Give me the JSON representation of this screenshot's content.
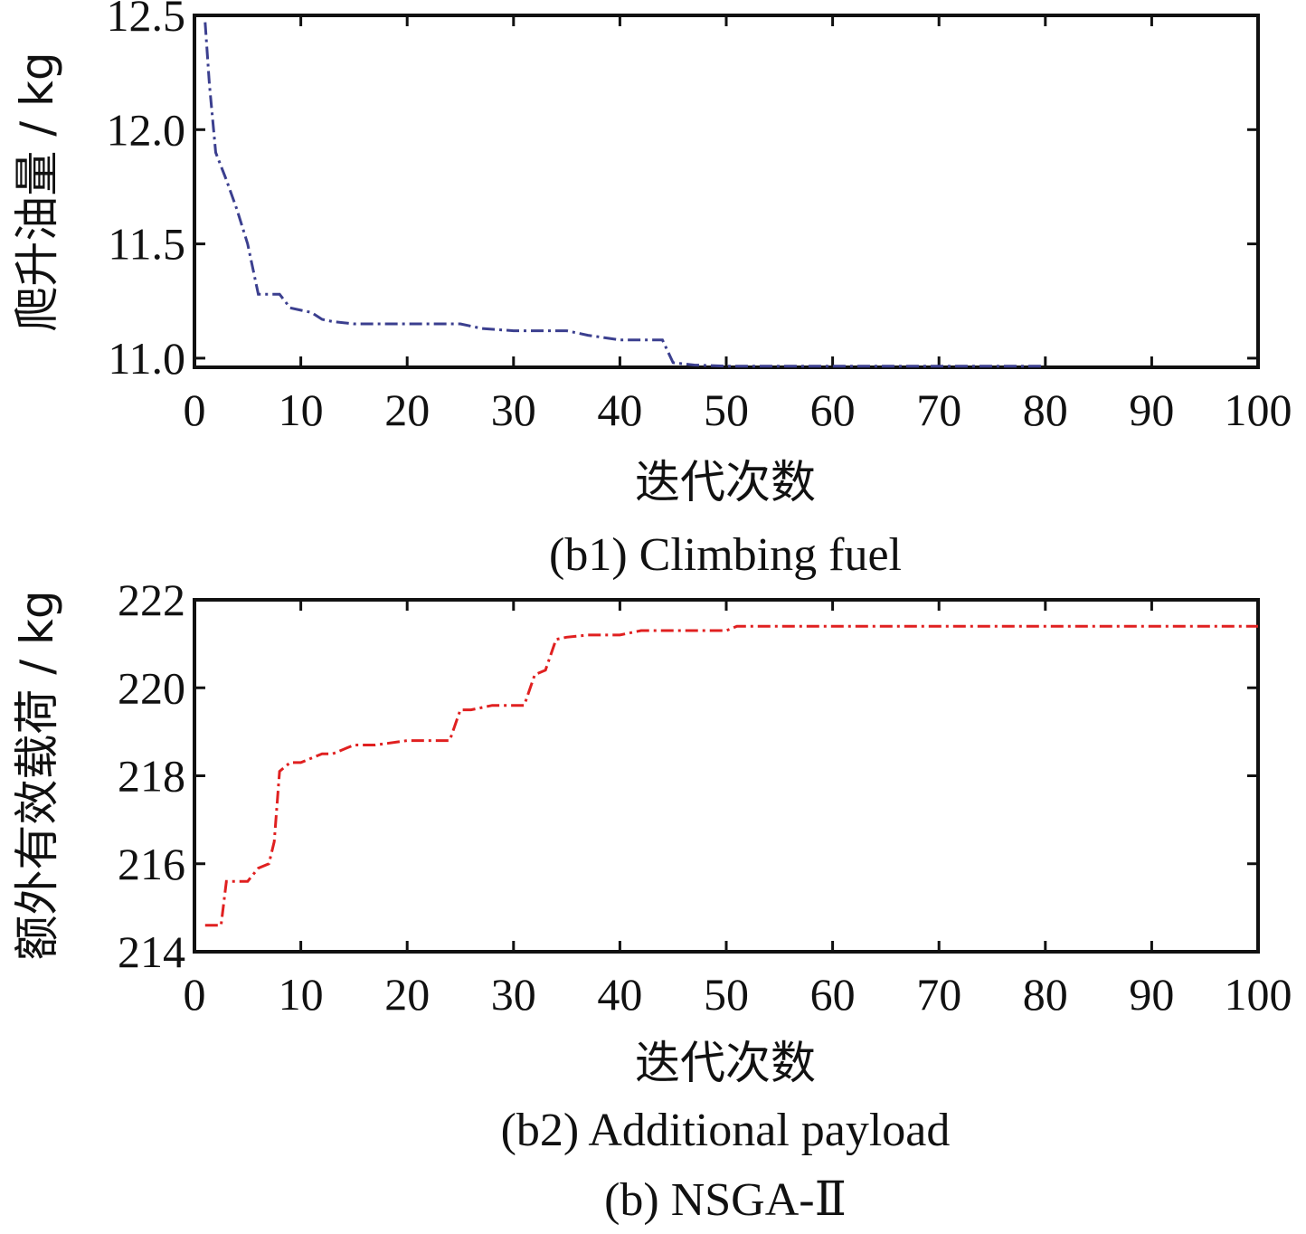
{
  "chart_data": [
    {
      "type": "line",
      "caption": "(b1) Climbing fuel",
      "xlabel": "迭代次数",
      "ylabel": "爬升油量 / kg",
      "xlim": [
        0,
        100
      ],
      "ylim": [
        10.96,
        12.5
      ],
      "xticks": [
        "0",
        "10",
        "20",
        "30",
        "40",
        "50",
        "60",
        "70",
        "80",
        "90",
        "100"
      ],
      "yticks": [
        {
          "value": 11.0,
          "label": "11.0"
        },
        {
          "value": 11.5,
          "label": "11.5"
        },
        {
          "value": 12.0,
          "label": "12.0"
        },
        {
          "value": 12.5,
          "label": "12.5"
        }
      ],
      "color": "#3b3f8f",
      "series": [
        {
          "x": [
            1,
            1.4,
            2,
            3,
            4,
            5,
            6,
            7,
            8,
            9,
            10,
            11,
            12,
            13,
            15,
            20,
            25,
            26,
            27,
            30,
            35,
            36,
            37,
            40,
            43,
            44,
            45,
            47,
            50,
            60,
            70,
            80
          ],
          "y": [
            12.47,
            12.2,
            11.9,
            11.78,
            11.65,
            11.5,
            11.28,
            11.28,
            11.28,
            11.22,
            11.21,
            11.2,
            11.17,
            11.16,
            11.15,
            11.15,
            11.15,
            11.14,
            11.13,
            11.12,
            11.12,
            11.11,
            11.1,
            11.08,
            11.08,
            11.08,
            10.98,
            10.97,
            10.965,
            10.965,
            10.965,
            10.965
          ]
        }
      ]
    },
    {
      "type": "line",
      "caption": "(b2) Additional payload",
      "xlabel": "迭代次数",
      "ylabel": "额外有效载荷 / kg",
      "xlim": [
        0,
        100
      ],
      "ylim": [
        214,
        222
      ],
      "xticks": [
        "0",
        "10",
        "20",
        "30",
        "40",
        "50",
        "60",
        "70",
        "80",
        "90",
        "100"
      ],
      "yticks": [
        {
          "value": 214,
          "label": "214"
        },
        {
          "value": 216,
          "label": "216"
        },
        {
          "value": 218,
          "label": "218"
        },
        {
          "value": 220,
          "label": "220"
        },
        {
          "value": 222,
          "label": "222"
        }
      ],
      "color": "#e02020",
      "series": [
        {
          "x": [
            1,
            2,
            2.5,
            3,
            5,
            6,
            7,
            7.5,
            8,
            9,
            10,
            11,
            12,
            13,
            15,
            17,
            20,
            24,
            25,
            26,
            28,
            31,
            32,
            33,
            34,
            35,
            37,
            40,
            42,
            45,
            50,
            51,
            60,
            70,
            80,
            90,
            100
          ],
          "y": [
            214.6,
            214.6,
            214.6,
            215.6,
            215.6,
            215.9,
            216.0,
            216.5,
            218.1,
            218.3,
            218.3,
            218.4,
            218.5,
            218.5,
            218.7,
            218.7,
            218.8,
            218.8,
            219.5,
            219.5,
            219.6,
            219.6,
            220.3,
            220.4,
            221.1,
            221.15,
            221.2,
            221.2,
            221.3,
            221.3,
            221.3,
            221.4,
            221.4,
            221.4,
            221.4,
            221.4,
            221.4
          ]
        }
      ]
    }
  ],
  "figure_caption": "(b) NSGA-Ⅱ"
}
